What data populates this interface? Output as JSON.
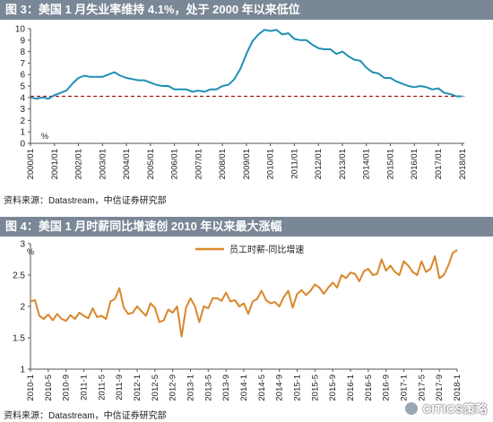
{
  "colors": {
    "title_bar": "#7a8796",
    "series_blue": "#1f8fb5",
    "series_orange": "#d9872a",
    "ref_red": "#a01818",
    "axis": "#555555"
  },
  "figure3": {
    "title": "图 3：美国 1 月失业率维持 4.1%，处于 2000 年以来低位",
    "source": "资料来源：Datastream，中信证券研究部"
  },
  "figure4": {
    "title": "图 4：美国 1 月时薪同比增速创 2010 年以来最大涨幅",
    "source": "资料来源：Datastream，中信证券研究部"
  },
  "watermark": "CITICS策略",
  "chart_data": [
    {
      "type": "line",
      "ylabel": "%",
      "ylim": [
        0,
        10
      ],
      "yticks": [
        0,
        1,
        2,
        3,
        4,
        5,
        6,
        7,
        8,
        9,
        10
      ],
      "xlim": [
        2000.0,
        2018.083
      ],
      "xtick_labels": [
        "2000/01",
        "2001/01",
        "2002/01",
        "2003/01",
        "2004/01",
        "2005/01",
        "2006/01",
        "2007/01",
        "2008/01",
        "2009/01",
        "2010/01",
        "2011/01",
        "2012/01",
        "2013/01",
        "2014/01",
        "2015/01",
        "2016/01",
        "2017/01",
        "2018/01"
      ],
      "xtick_values": [
        2000,
        2001,
        2002,
        2003,
        2004,
        2005,
        2006,
        2007,
        2008,
        2009,
        2010,
        2011,
        2012,
        2013,
        2014,
        2015,
        2016,
        2017,
        2018
      ],
      "reference_line": {
        "y": 4.1,
        "style": "dashed"
      },
      "series": [
        {
          "x": [
            2000.0,
            2000.25,
            2000.5,
            2000.75,
            2001.0,
            2001.25,
            2001.5,
            2001.75,
            2002.0,
            2002.25,
            2002.5,
            2002.75,
            2003.0,
            2003.25,
            2003.5,
            2003.75,
            2004.0,
            2004.25,
            2004.5,
            2004.75,
            2005.0,
            2005.25,
            2005.5,
            2005.75,
            2006.0,
            2006.25,
            2006.5,
            2006.75,
            2007.0,
            2007.25,
            2007.5,
            2007.75,
            2008.0,
            2008.25,
            2008.5,
            2008.75,
            2009.0,
            2009.25,
            2009.5,
            2009.75,
            2010.0,
            2010.25,
            2010.5,
            2010.75,
            2011.0,
            2011.25,
            2011.5,
            2011.75,
            2012.0,
            2012.25,
            2012.5,
            2012.75,
            2013.0,
            2013.25,
            2013.5,
            2013.75,
            2014.0,
            2014.25,
            2014.5,
            2014.75,
            2015.0,
            2015.25,
            2015.5,
            2015.75,
            2016.0,
            2016.25,
            2016.5,
            2016.75,
            2017.0,
            2017.25,
            2017.5,
            2017.75,
            2018.0
          ],
          "values": [
            4.0,
            3.9,
            4.0,
            3.9,
            4.2,
            4.4,
            4.6,
            5.2,
            5.7,
            5.9,
            5.8,
            5.8,
            5.8,
            6.0,
            6.2,
            5.9,
            5.7,
            5.6,
            5.5,
            5.5,
            5.3,
            5.1,
            5.0,
            5.0,
            4.7,
            4.7,
            4.7,
            4.5,
            4.6,
            4.5,
            4.7,
            4.7,
            5.0,
            5.1,
            5.6,
            6.5,
            7.8,
            8.9,
            9.5,
            9.9,
            9.8,
            9.9,
            9.5,
            9.6,
            9.1,
            9.0,
            9.0,
            8.6,
            8.3,
            8.2,
            8.2,
            7.8,
            8.0,
            7.6,
            7.3,
            7.2,
            6.6,
            6.2,
            6.1,
            5.7,
            5.7,
            5.4,
            5.2,
            5.0,
            4.9,
            5.0,
            4.9,
            4.7,
            4.8,
            4.4,
            4.3,
            4.1,
            4.1
          ]
        }
      ]
    },
    {
      "type": "line",
      "ylabel": "%",
      "ylim": [
        1,
        3
      ],
      "yticks": [
        1,
        1.5,
        2,
        2.5,
        3
      ],
      "ytick_labels": [
        "1",
        "1.5",
        "2",
        "2.5",
        "3"
      ],
      "xlim": [
        0,
        96
      ],
      "xtick_labels": [
        "2010-1",
        "2010-5",
        "2010-9",
        "2011-1",
        "2011-5",
        "2011-9",
        "2012-1",
        "2012-5",
        "2012-9",
        "2013-1",
        "2013-5",
        "2013-9",
        "2014-1",
        "2014-5",
        "2014-9",
        "2015-1",
        "2015-5",
        "2015-9",
        "2016-1",
        "2016-5",
        "2016-9",
        "2017-1",
        "2017-5",
        "2017-9",
        "2018-1"
      ],
      "xtick_values": [
        0,
        4,
        8,
        12,
        16,
        20,
        24,
        28,
        32,
        36,
        40,
        44,
        48,
        52,
        56,
        60,
        64,
        68,
        72,
        76,
        80,
        84,
        88,
        92,
        96
      ],
      "legend": "top-center",
      "series": [
        {
          "name": "员工时薪-同比增速",
          "x": [
            0,
            1,
            2,
            3,
            4,
            5,
            6,
            7,
            8,
            9,
            10,
            11,
            12,
            13,
            14,
            15,
            16,
            17,
            18,
            19,
            20,
            21,
            22,
            23,
            24,
            25,
            26,
            27,
            28,
            29,
            30,
            31,
            32,
            33,
            34,
            35,
            36,
            37,
            38,
            39,
            40,
            41,
            42,
            43,
            44,
            45,
            46,
            47,
            48,
            49,
            50,
            51,
            52,
            53,
            54,
            55,
            56,
            57,
            58,
            59,
            60,
            61,
            62,
            63,
            64,
            65,
            66,
            67,
            68,
            69,
            70,
            71,
            72,
            73,
            74,
            75,
            76,
            77,
            78,
            79,
            80,
            81,
            82,
            83,
            84,
            85,
            86,
            87,
            88,
            89,
            90,
            91,
            92,
            93,
            94,
            95,
            96
          ],
          "values": [
            2.08,
            2.1,
            1.85,
            1.8,
            1.87,
            1.78,
            1.88,
            1.8,
            1.77,
            1.86,
            1.8,
            1.9,
            1.85,
            1.81,
            1.97,
            1.83,
            1.85,
            1.8,
            2.08,
            2.12,
            2.29,
            1.98,
            1.88,
            1.9,
            2.0,
            1.92,
            1.85,
            2.05,
            1.98,
            1.75,
            1.78,
            1.95,
            1.9,
            2.0,
            1.52,
            1.98,
            2.13,
            2.0,
            1.75,
            2.0,
            1.97,
            2.13,
            2.13,
            2.09,
            2.22,
            2.08,
            2.1,
            2.0,
            2.05,
            1.88,
            2.08,
            2.12,
            2.25,
            2.1,
            2.05,
            2.07,
            2.0,
            2.15,
            2.25,
            1.98,
            2.2,
            2.26,
            2.18,
            2.25,
            2.35,
            2.3,
            2.2,
            2.3,
            2.38,
            2.3,
            2.5,
            2.45,
            2.54,
            2.52,
            2.4,
            2.56,
            2.6,
            2.5,
            2.52,
            2.75,
            2.57,
            2.65,
            2.55,
            2.5,
            2.72,
            2.65,
            2.55,
            2.5,
            2.72,
            2.55,
            2.6,
            2.8,
            2.45,
            2.5,
            2.65,
            2.85,
            2.9
          ]
        }
      ]
    }
  ]
}
